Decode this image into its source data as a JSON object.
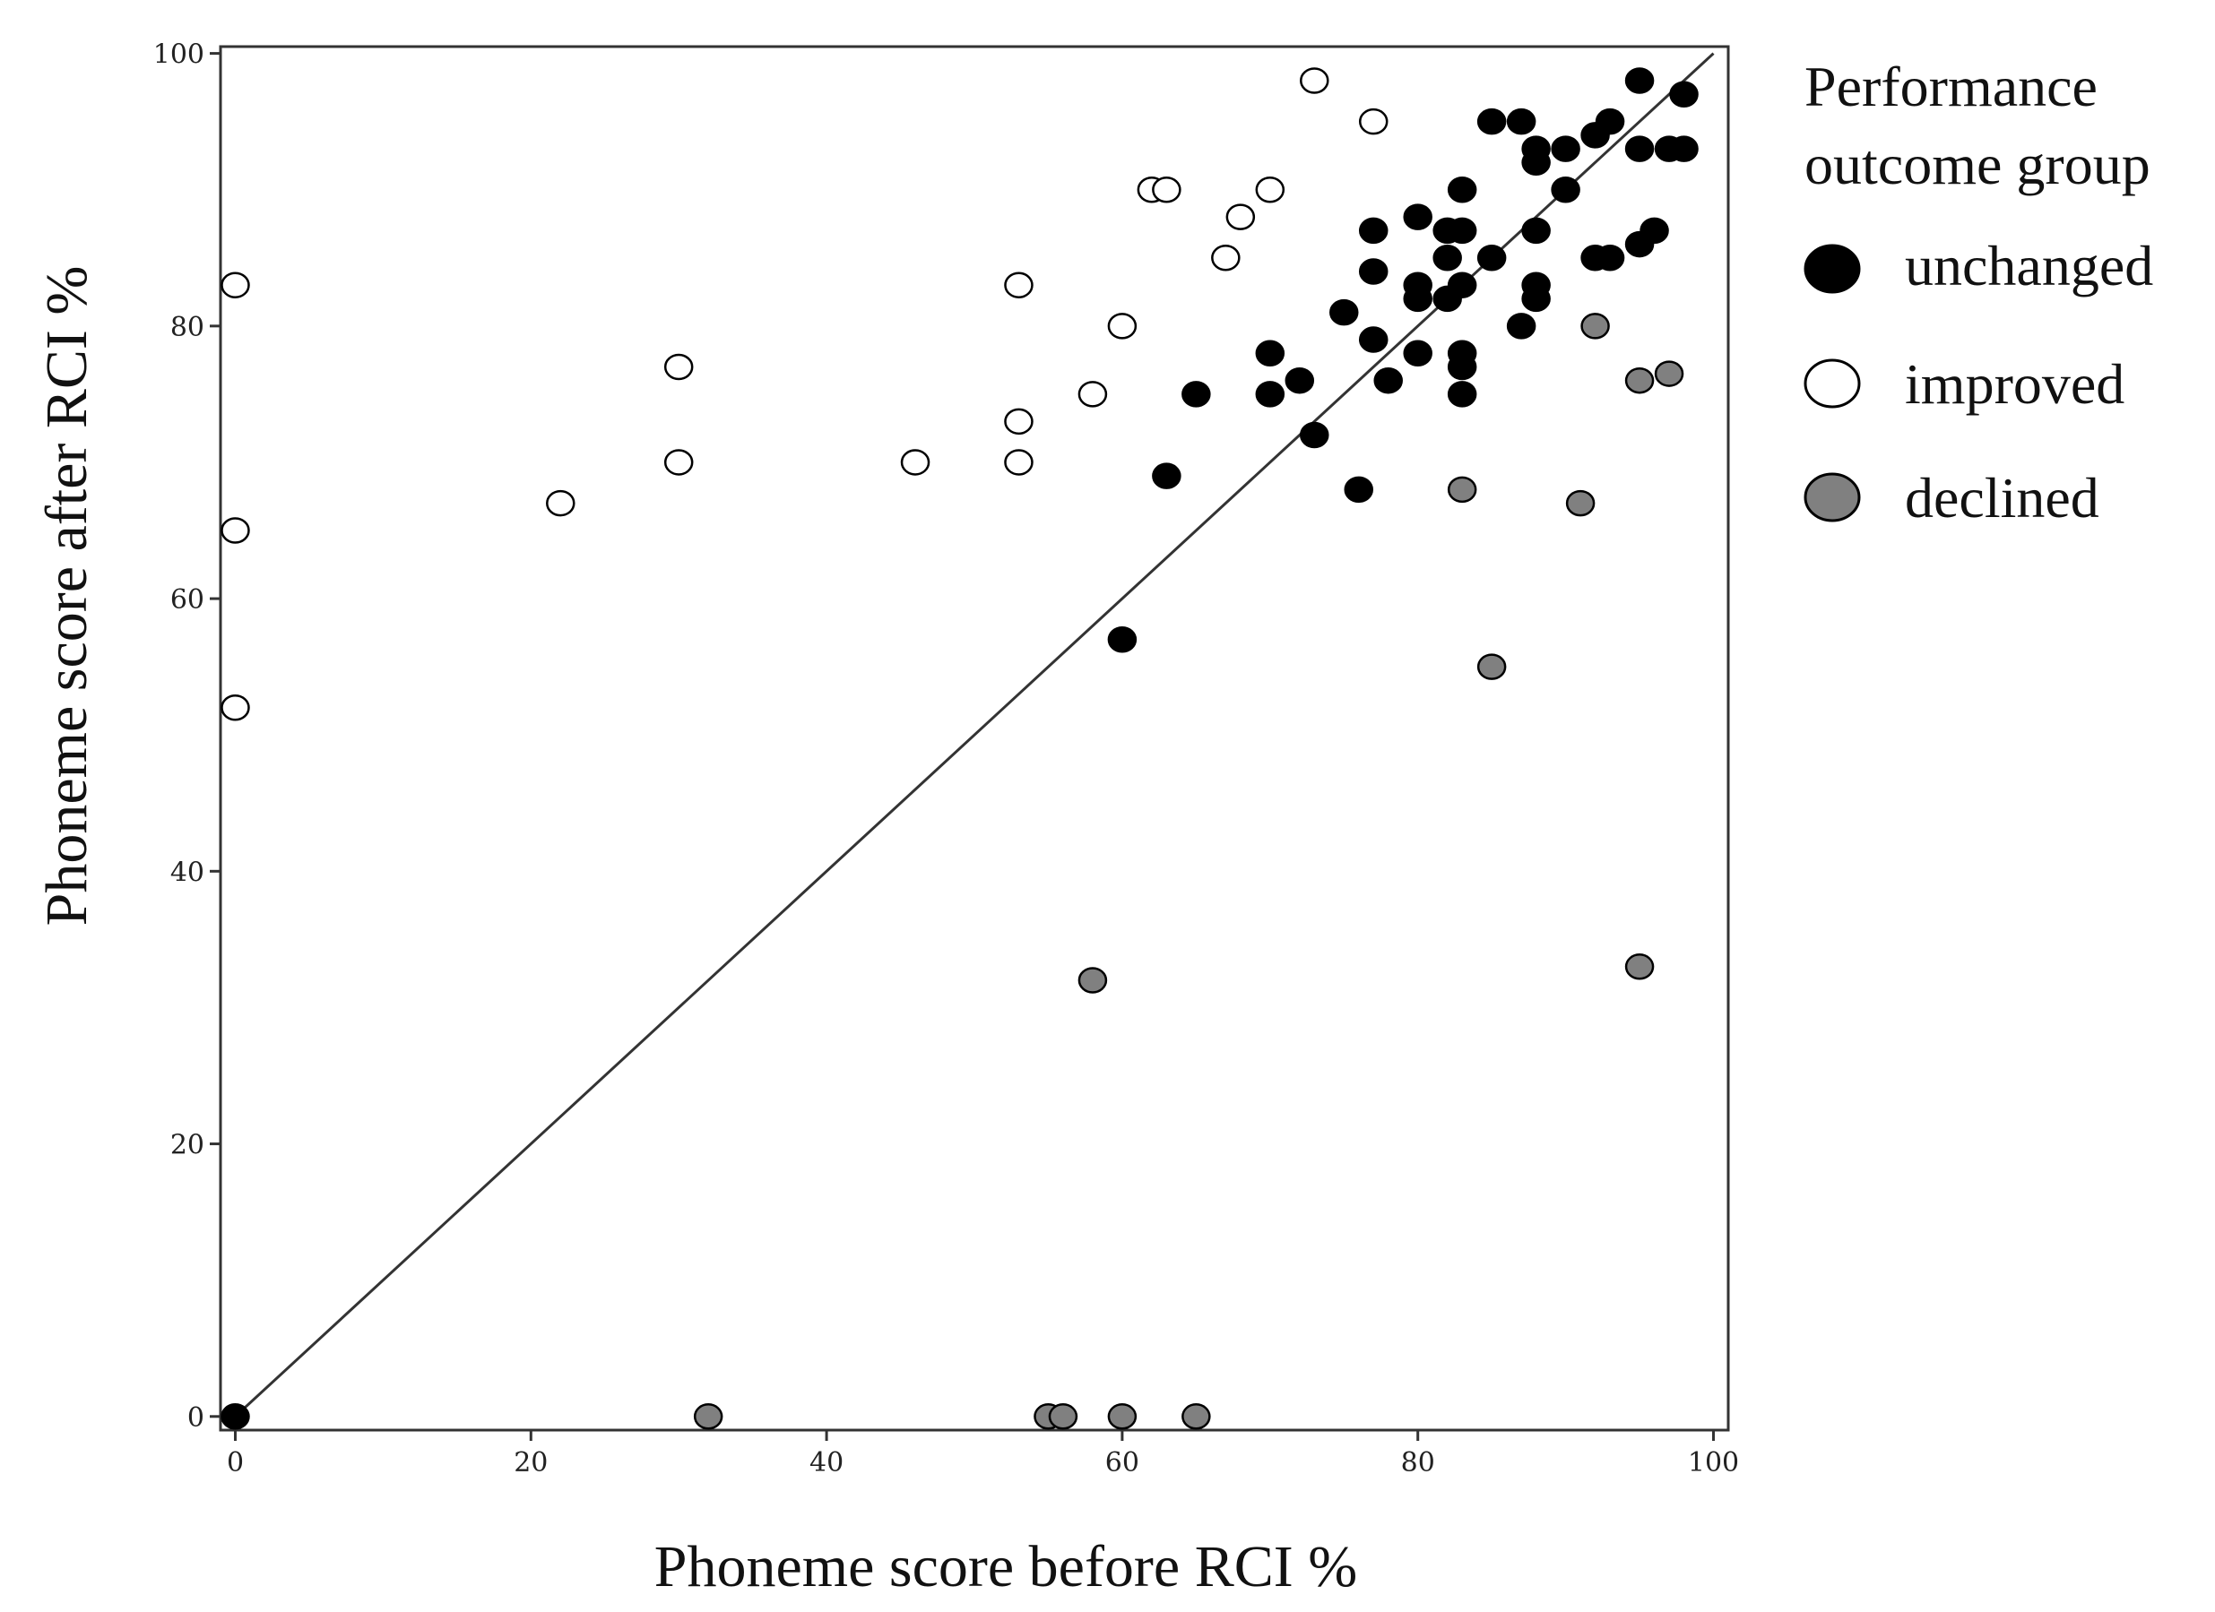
{
  "chart_data": {
    "type": "scatter",
    "xlabel": "Phoneme score before RCI %",
    "ylabel": "Phoneme score after RCI %",
    "xlim": [
      -1,
      101
    ],
    "ylim": [
      -1,
      100.5
    ],
    "xticks": [
      0,
      20,
      40,
      60,
      80,
      100
    ],
    "yticks": [
      0,
      20,
      40,
      60,
      80,
      100
    ],
    "grid": false,
    "reference_line": "y = x",
    "legend": {
      "title_lines": [
        "Performance",
        "outcome group"
      ],
      "placement": "right"
    },
    "series": [
      {
        "name": "unchanged",
        "fill": "#000000",
        "points": [
          [
            0,
            0
          ],
          [
            95,
            98
          ],
          [
            98,
            97
          ],
          [
            85,
            95
          ],
          [
            87,
            95
          ],
          [
            93,
            95
          ],
          [
            92,
            94
          ],
          [
            88,
            93
          ],
          [
            90,
            93
          ],
          [
            95,
            93
          ],
          [
            97,
            93
          ],
          [
            98,
            93
          ],
          [
            88,
            92
          ],
          [
            83,
            90
          ],
          [
            90,
            90
          ],
          [
            80,
            88
          ],
          [
            77,
            87
          ],
          [
            82,
            87
          ],
          [
            83,
            87
          ],
          [
            88,
            87
          ],
          [
            96,
            87
          ],
          [
            95,
            86
          ],
          [
            82,
            85
          ],
          [
            85,
            85
          ],
          [
            92,
            85
          ],
          [
            93,
            85
          ],
          [
            77,
            84
          ],
          [
            80,
            83
          ],
          [
            83,
            83
          ],
          [
            88,
            83
          ],
          [
            80,
            82
          ],
          [
            82,
            82
          ],
          [
            88,
            82
          ],
          [
            75,
            81
          ],
          [
            87,
            80
          ],
          [
            77,
            79
          ],
          [
            70,
            78
          ],
          [
            80,
            78
          ],
          [
            83,
            78
          ],
          [
            83,
            77
          ],
          [
            72,
            76
          ],
          [
            78,
            76
          ],
          [
            65,
            75
          ],
          [
            70,
            75
          ],
          [
            83,
            75
          ],
          [
            73,
            72
          ],
          [
            63,
            69
          ],
          [
            76,
            68
          ],
          [
            60,
            57
          ]
        ]
      },
      {
        "name": "improved",
        "fill": "#ffffff",
        "points": [
          [
            73,
            98
          ],
          [
            77,
            95
          ],
          [
            62,
            90
          ],
          [
            63,
            90
          ],
          [
            70,
            90
          ],
          [
            68,
            88
          ],
          [
            67,
            85
          ],
          [
            0,
            83
          ],
          [
            53,
            83
          ],
          [
            60,
            80
          ],
          [
            30,
            77
          ],
          [
            58,
            75
          ],
          [
            53,
            73
          ],
          [
            30,
            70
          ],
          [
            46,
            70
          ],
          [
            53,
            70
          ],
          [
            22,
            67
          ],
          [
            0,
            65
          ],
          [
            0,
            52
          ]
        ]
      },
      {
        "name": "declined",
        "fill": "#808080",
        "points": [
          [
            92,
            80
          ],
          [
            97,
            76.5
          ],
          [
            95,
            76
          ],
          [
            83,
            68
          ],
          [
            91,
            67
          ],
          [
            85,
            55
          ],
          [
            95,
            33
          ],
          [
            58,
            32
          ],
          [
            32,
            0
          ],
          [
            55,
            0
          ],
          [
            56,
            0
          ],
          [
            60,
            0
          ],
          [
            65,
            0
          ]
        ]
      }
    ]
  }
}
